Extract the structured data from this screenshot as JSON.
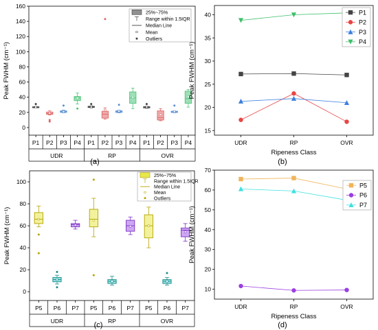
{
  "chart_data": [
    {
      "panel": "(a)",
      "type": "box",
      "ylabel": "Peak FWHM (cm⁻¹)",
      "ylim": [
        -10,
        160
      ],
      "yticks": [
        0,
        20,
        40,
        60,
        80,
        100,
        120,
        140,
        160
      ],
      "groups": [
        "UDR",
        "RP",
        "OVR"
      ],
      "categories": [
        "P1",
        "P2",
        "P3",
        "P4",
        "P1",
        "P2",
        "P3",
        "P4",
        "P1",
        "P2",
        "P3",
        "P4"
      ],
      "legend": [
        "25%~75%",
        "Range within 1.5IQR",
        "Median Line",
        "Mean",
        "Outliers"
      ],
      "series_colors": {
        "P1": "#404040",
        "P2": "#e06666",
        "P3": "#5b8fd4",
        "P4": "#4fc47b"
      },
      "boxes": [
        {
          "group": "UDR",
          "cat": "P1",
          "color": "#404040",
          "whislo": 26.5,
          "q1": 26.8,
          "med": 27.1,
          "q3": 27.4,
          "whishi": 27.6,
          "mean": 27.1,
          "outliers": [
            31
          ]
        },
        {
          "group": "UDR",
          "cat": "P2",
          "color": "#e06666",
          "whislo": 16.5,
          "q1": 17.5,
          "med": 18.5,
          "q3": 20.5,
          "whishi": 22,
          "mean": 19,
          "outliers": [
            10,
            8
          ]
        },
        {
          "group": "UDR",
          "cat": "P3",
          "color": "#5b8fd4",
          "whislo": 19.5,
          "q1": 20,
          "med": 21,
          "q3": 22,
          "whishi": 23,
          "mean": 21,
          "outliers": [
            29
          ]
        },
        {
          "group": "UDR",
          "cat": "P4",
          "color": "#4fc47b",
          "whislo": 31,
          "q1": 35.5,
          "med": 39,
          "q3": 41,
          "whishi": 45.5,
          "mean": 38.8,
          "outliers": [
            25
          ]
        },
        {
          "group": "RP",
          "cat": "P1",
          "color": "#404040",
          "whislo": 26,
          "q1": 26.5,
          "med": 27,
          "q3": 28,
          "whishi": 28.5,
          "mean": 27.2,
          "outliers": [
            31
          ]
        },
        {
          "group": "RP",
          "cat": "P2",
          "color": "#e06666",
          "whislo": 11,
          "q1": 12.5,
          "med": 17.5,
          "q3": 21.5,
          "whishi": 26,
          "mean": 23,
          "outliers": [
            143
          ]
        },
        {
          "group": "RP",
          "cat": "P3",
          "color": "#5b8fd4",
          "whislo": 19.5,
          "q1": 20,
          "med": 21,
          "q3": 22,
          "whishi": 23,
          "mean": 21.8,
          "outliers": [
            30
          ]
        },
        {
          "group": "RP",
          "cat": "P4",
          "color": "#4fc47b",
          "whislo": 25,
          "q1": 32,
          "med": 39,
          "q3": 47,
          "whishi": 52,
          "mean": 40,
          "outliers": []
        },
        {
          "group": "OVR",
          "cat": "P1",
          "color": "#404040",
          "whislo": 25.5,
          "q1": 26,
          "med": 26.5,
          "q3": 27.5,
          "whishi": 28,
          "mean": 27,
          "outliers": [
            31
          ]
        },
        {
          "group": "OVR",
          "cat": "P2",
          "color": "#e06666",
          "whislo": 9,
          "q1": 10,
          "med": 13,
          "q3": 22,
          "whishi": 25,
          "mean": 17,
          "outliers": []
        },
        {
          "group": "OVR",
          "cat": "P3",
          "color": "#5b8fd4",
          "whislo": 19.5,
          "q1": 20,
          "med": 20.5,
          "q3": 21.5,
          "whishi": 22,
          "mean": 21,
          "outliers": [
            29
          ]
        },
        {
          "group": "OVR",
          "cat": "P4",
          "color": "#4fc47b",
          "whislo": 27,
          "q1": 32,
          "med": 38,
          "q3": 48,
          "whishi": 50,
          "mean": 40.5,
          "outliers": []
        }
      ]
    },
    {
      "panel": "(b)",
      "type": "line",
      "xlabel": "Ripeness Class",
      "ylabel": "Peak FWHM (cm⁻¹)",
      "categories": [
        "UDR",
        "RP",
        "OVR"
      ],
      "ylim": [
        14,
        42
      ],
      "yticks": [
        15,
        20,
        25,
        30,
        35,
        40
      ],
      "legend": "top-right",
      "series": [
        {
          "name": "P1",
          "color": "#444444",
          "marker": "square",
          "values": [
            27.2,
            27.3,
            27.0
          ]
        },
        {
          "name": "P2",
          "color": "#e84545",
          "marker": "circle",
          "values": [
            17.3,
            23.0,
            16.9
          ]
        },
        {
          "name": "P3",
          "color": "#3d7fe0",
          "marker": "triangle",
          "values": [
            21.3,
            21.9,
            21.0
          ]
        },
        {
          "name": "P4",
          "color": "#3cbf6a",
          "marker": "triangle-down",
          "values": [
            38.8,
            40.0,
            40.4
          ]
        }
      ]
    },
    {
      "panel": "(c)",
      "type": "box",
      "ylabel": "Peak FWHM (cm⁻¹)",
      "ylim": [
        -8,
        110
      ],
      "yticks": [
        0,
        20,
        40,
        60,
        80,
        100
      ],
      "groups": [
        "UDR",
        "RP",
        "OVR"
      ],
      "categories": [
        "P5",
        "P6",
        "P7",
        "P5",
        "P6",
        "P7",
        "P5",
        "P6",
        "P7"
      ],
      "legend": [
        "25%~75%",
        "Range within 1.5IQR",
        "Median Line",
        "Mean",
        "Outliers"
      ],
      "series_colors": {
        "P5": "#e8e84a",
        "P6": "#3cc6c6",
        "P7": "#a45ee8"
      },
      "boxes": [
        {
          "group": "UDR",
          "cat": "P5",
          "color": "#e8e84a",
          "edge": "#b5a300",
          "whislo": 59,
          "q1": 62,
          "med": 66,
          "q3": 72,
          "whishi": 78,
          "mean": 66,
          "outliers": [
            52,
            35
          ]
        },
        {
          "group": "UDR",
          "cat": "P6",
          "color": "#3cc6c6",
          "edge": "#1a8a8a",
          "whislo": 7,
          "q1": 9,
          "med": 11,
          "q3": 13,
          "whishi": 15,
          "mean": 11,
          "outliers": [
            18,
            4
          ]
        },
        {
          "group": "UDR",
          "cat": "P7",
          "color": "#a45ee8",
          "edge": "#7a2fc4",
          "whislo": 57,
          "q1": 59,
          "med": 61,
          "q3": 62,
          "whishi": 65,
          "mean": 60.5,
          "outliers": []
        },
        {
          "group": "RP",
          "cat": "P5",
          "color": "#e8e84a",
          "edge": "#b5a300",
          "whislo": 50,
          "q1": 59,
          "med": 66,
          "q3": 75,
          "whishi": 85,
          "mean": 65,
          "outliers": [
            102,
            15
          ]
        },
        {
          "group": "RP",
          "cat": "P6",
          "color": "#3cc6c6",
          "edge": "#1a8a8a",
          "whislo": 6,
          "q1": 7.5,
          "med": 9.5,
          "q3": 11,
          "whishi": 14,
          "mean": 9.5,
          "outliers": []
        },
        {
          "group": "RP",
          "cat": "P7",
          "color": "#a45ee8",
          "edge": "#7a2fc4",
          "whislo": 52,
          "q1": 55,
          "med": 60,
          "q3": 65,
          "whishi": 68,
          "mean": 59.5,
          "outliers": []
        },
        {
          "group": "OVR",
          "cat": "P5",
          "color": "#e8e84a",
          "edge": "#b5a300",
          "whislo": 40,
          "q1": 49,
          "med": 60,
          "q3": 70,
          "whishi": 77,
          "mean": 60,
          "outliers": []
        },
        {
          "group": "OVR",
          "cat": "P6",
          "color": "#3cc6c6",
          "edge": "#1a8a8a",
          "whislo": 6,
          "q1": 7.5,
          "med": 9.5,
          "q3": 11,
          "whishi": 13,
          "mean": 9.5,
          "outliers": [
            17
          ]
        },
        {
          "group": "OVR",
          "cat": "P7",
          "color": "#a45ee8",
          "edge": "#7a2fc4",
          "whislo": 46,
          "q1": 50,
          "med": 56,
          "q3": 58,
          "whishi": 62,
          "mean": 54.5,
          "outliers": []
        }
      ]
    },
    {
      "panel": "(d)",
      "type": "line",
      "xlabel": "Ripeness Class",
      "ylabel": "Peak FWHM (cm⁻¹)",
      "categories": [
        "UDR",
        "RP",
        "OVR"
      ],
      "ylim": [
        5,
        70
      ],
      "yticks": [
        10,
        20,
        30,
        40,
        50,
        60,
        70
      ],
      "legend": "top-right",
      "series": [
        {
          "name": "P5",
          "color": "#f0b45a",
          "marker": "square",
          "values": [
            65.5,
            66.0,
            60.5
          ]
        },
        {
          "name": "P6",
          "color": "#9b3ee0",
          "marker": "circle",
          "values": [
            11.6,
            9.4,
            9.6
          ]
        },
        {
          "name": "P7",
          "color": "#40e0e0",
          "marker": "triangle",
          "values": [
            60.5,
            59.5,
            54.9
          ]
        }
      ]
    }
  ],
  "captions": {
    "a": "(a)",
    "b": "(b)",
    "c": "(c)",
    "d": "(d)"
  }
}
